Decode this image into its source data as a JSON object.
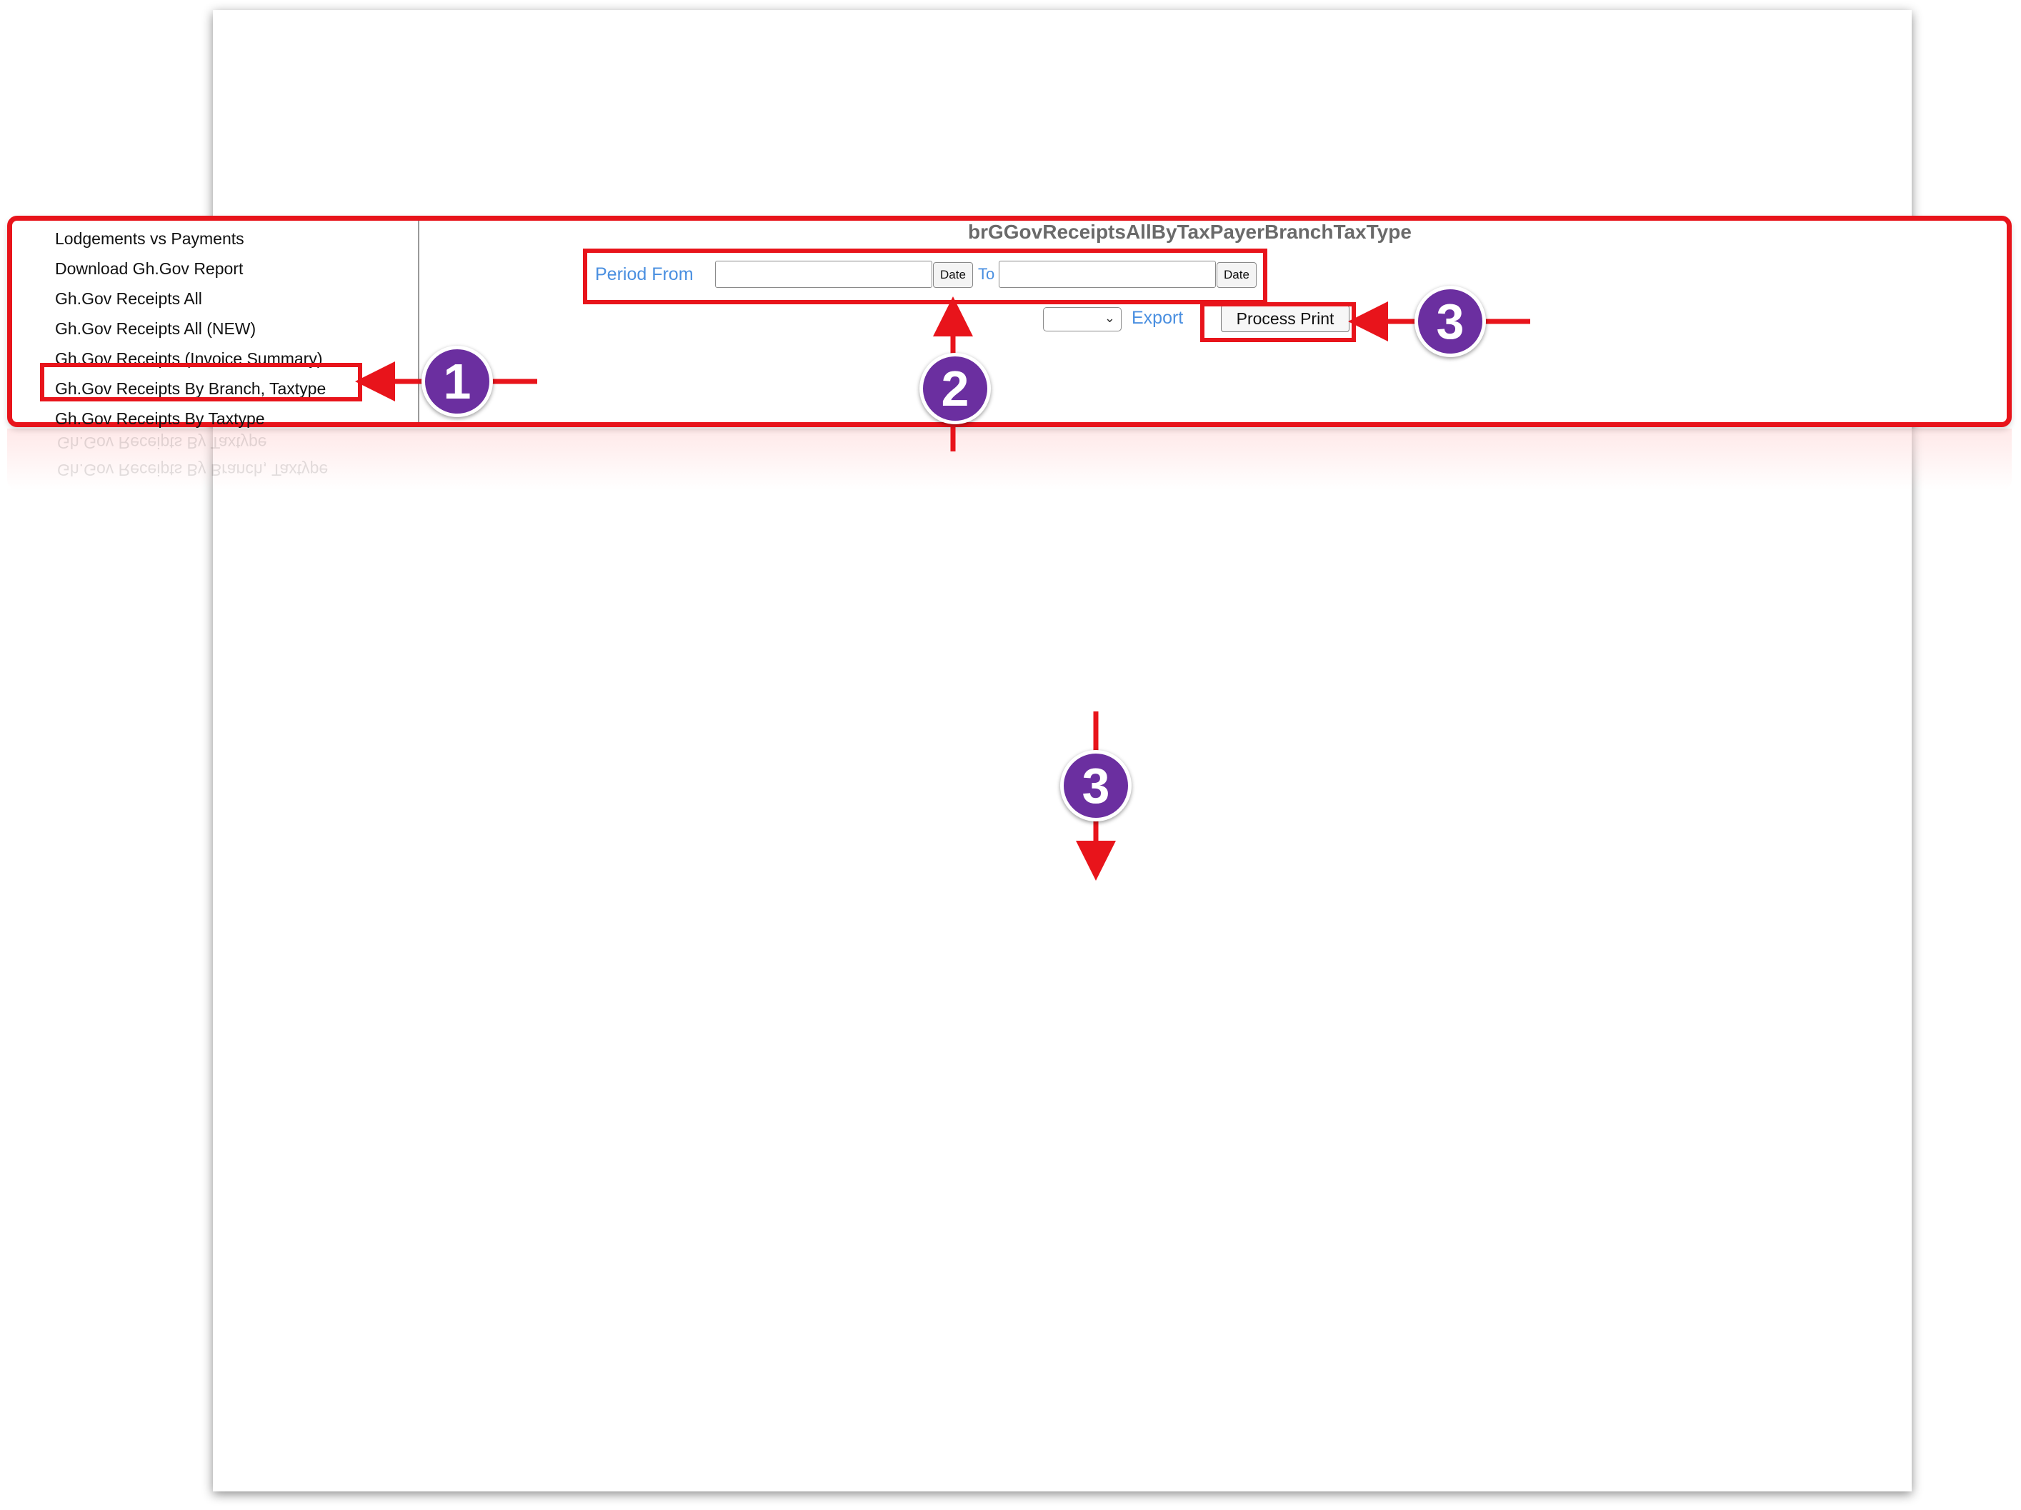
{
  "sidebar": {
    "items": [
      {
        "label": "Lodgements vs Payments"
      },
      {
        "label": "Download Gh.Gov Report"
      },
      {
        "label": "Gh.Gov Receipts All"
      },
      {
        "label": "Gh.Gov Receipts All (NEW)"
      },
      {
        "label": "Gh.Gov Receipts (Invoice Summary)"
      },
      {
        "label": "Gh.Gov Receipts By Branch, Taxtype"
      },
      {
        "label": "Gh.Gov Receipts By Taxtype"
      }
    ],
    "selected_index": 5
  },
  "report": {
    "title": "brGGovReceiptsAllByTaxPayerBranchTaxType",
    "period_from_label": "Period From",
    "to_label": "To",
    "date_from_value": "",
    "date_to_value": "",
    "date_button_label": "Date",
    "export_select_value": "",
    "export_label": "Export",
    "process_print_label": "Process Print"
  },
  "reflection": {
    "lines": [
      "Gh.Gov Receipts By Taxtype",
      "Gh.Gov Receipts By Branch, Taxtype"
    ]
  },
  "annotations": {
    "markers": [
      "1",
      "2",
      "3",
      "3"
    ],
    "colors": {
      "highlight": "#e8141b",
      "marker_fill": "#6b2fa0",
      "link_blue": "#4a8fe0"
    }
  },
  "icons": {
    "export_select": "chevron-down-icon"
  }
}
